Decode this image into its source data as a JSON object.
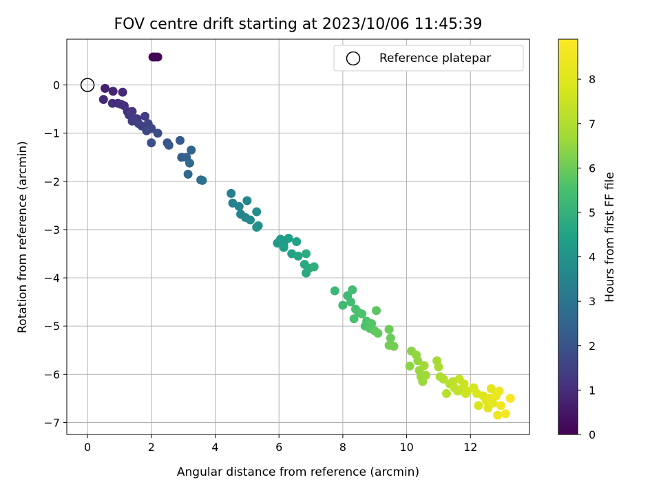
{
  "chart_data": {
    "type": "scatter",
    "title": "FOV centre drift starting at 2023/10/06 11:45:39",
    "xlabel": "Angular distance from reference (arcmin)",
    "ylabel": "Rotation from reference (arcmin)",
    "xlim": [
      -0.65,
      13.85
    ],
    "ylim": [
      -7.25,
      0.95
    ],
    "xticks": [
      "0",
      "2",
      "4",
      "6",
      "8",
      "10",
      "12"
    ],
    "yticks": [
      "0",
      "−1",
      "−2",
      "−3",
      "−4",
      "−5",
      "−6",
      "−7"
    ],
    "grid": true,
    "legend": {
      "position": "top-right",
      "entries": [
        "Reference platepar"
      ]
    },
    "reference_point": {
      "x": 0,
      "y": 0
    },
    "colorbar": {
      "label": "Hours from first FF file",
      "range": [
        0,
        8.9
      ],
      "ticks": [
        "0",
        "1",
        "2",
        "3",
        "4",
        "5",
        "6",
        "7",
        "8"
      ],
      "colormap": "viridis"
    },
    "points": [
      {
        "x": 2.05,
        "y": 0.58,
        "h": 0.0
      },
      {
        "x": 2.12,
        "y": 0.58,
        "h": 0.05
      },
      {
        "x": 2.2,
        "y": 0.58,
        "h": 0.1
      },
      {
        "x": 0.55,
        "y": -0.07,
        "h": 0.7
      },
      {
        "x": 0.8,
        "y": -0.13,
        "h": 0.8
      },
      {
        "x": 1.1,
        "y": -0.15,
        "h": 0.9
      },
      {
        "x": 0.5,
        "y": -0.3,
        "h": 0.9
      },
      {
        "x": 0.78,
        "y": -0.38,
        "h": 1.0
      },
      {
        "x": 0.95,
        "y": -0.38,
        "h": 1.0
      },
      {
        "x": 1.05,
        "y": -0.4,
        "h": 1.1
      },
      {
        "x": 1.15,
        "y": -0.43,
        "h": 1.1
      },
      {
        "x": 1.25,
        "y": -0.55,
        "h": 1.2
      },
      {
        "x": 1.4,
        "y": -0.55,
        "h": 1.2
      },
      {
        "x": 1.3,
        "y": -0.62,
        "h": 1.3
      },
      {
        "x": 1.55,
        "y": -0.7,
        "h": 1.3
      },
      {
        "x": 1.4,
        "y": -0.75,
        "h": 1.4
      },
      {
        "x": 1.8,
        "y": -0.65,
        "h": 1.4
      },
      {
        "x": 1.6,
        "y": -0.8,
        "h": 1.5
      },
      {
        "x": 1.7,
        "y": -0.85,
        "h": 1.5
      },
      {
        "x": 1.9,
        "y": -0.8,
        "h": 1.6
      },
      {
        "x": 2.0,
        "y": -0.9,
        "h": 1.6
      },
      {
        "x": 1.85,
        "y": -0.95,
        "h": 1.7
      },
      {
        "x": 2.2,
        "y": -1.0,
        "h": 1.8
      },
      {
        "x": 2.0,
        "y": -1.2,
        "h": 1.9
      },
      {
        "x": 2.5,
        "y": -1.2,
        "h": 2.0
      },
      {
        "x": 2.55,
        "y": -1.25,
        "h": 2.1
      },
      {
        "x": 2.9,
        "y": -1.15,
        "h": 2.2
      },
      {
        "x": 2.95,
        "y": -1.5,
        "h": 2.3
      },
      {
        "x": 3.1,
        "y": -1.5,
        "h": 2.4
      },
      {
        "x": 3.25,
        "y": -1.35,
        "h": 2.5
      },
      {
        "x": 3.2,
        "y": -1.62,
        "h": 2.6
      },
      {
        "x": 3.15,
        "y": -1.85,
        "h": 2.6
      },
      {
        "x": 3.55,
        "y": -1.97,
        "h": 2.8
      },
      {
        "x": 3.6,
        "y": -1.98,
        "h": 2.9
      },
      {
        "x": 4.5,
        "y": -2.25,
        "h": 3.3
      },
      {
        "x": 4.55,
        "y": -2.45,
        "h": 3.4
      },
      {
        "x": 4.75,
        "y": -2.52,
        "h": 3.5
      },
      {
        "x": 4.8,
        "y": -2.68,
        "h": 3.5
      },
      {
        "x": 4.95,
        "y": -2.75,
        "h": 3.6
      },
      {
        "x": 5.1,
        "y": -2.8,
        "h": 3.7
      },
      {
        "x": 5.0,
        "y": -2.4,
        "h": 3.6
      },
      {
        "x": 5.3,
        "y": -2.63,
        "h": 3.8
      },
      {
        "x": 5.3,
        "y": -2.95,
        "h": 3.9
      },
      {
        "x": 5.35,
        "y": -2.92,
        "h": 3.9
      },
      {
        "x": 5.95,
        "y": -3.28,
        "h": 4.2
      },
      {
        "x": 6.05,
        "y": -3.2,
        "h": 4.3
      },
      {
        "x": 6.15,
        "y": -3.3,
        "h": 4.3
      },
      {
        "x": 6.15,
        "y": -3.37,
        "h": 4.4
      },
      {
        "x": 6.3,
        "y": -3.18,
        "h": 4.4
      },
      {
        "x": 6.4,
        "y": -3.5,
        "h": 4.5
      },
      {
        "x": 6.55,
        "y": -3.25,
        "h": 4.5
      },
      {
        "x": 6.6,
        "y": -3.55,
        "h": 4.6
      },
      {
        "x": 6.8,
        "y": -3.72,
        "h": 4.7
      },
      {
        "x": 6.85,
        "y": -3.9,
        "h": 4.7
      },
      {
        "x": 6.85,
        "y": -3.5,
        "h": 4.8
      },
      {
        "x": 6.95,
        "y": -3.8,
        "h": 4.8
      },
      {
        "x": 7.1,
        "y": -3.77,
        "h": 4.9
      },
      {
        "x": 7.75,
        "y": -4.27,
        "h": 5.2
      },
      {
        "x": 8.0,
        "y": -4.57,
        "h": 5.3
      },
      {
        "x": 8.15,
        "y": -4.37,
        "h": 5.3
      },
      {
        "x": 8.3,
        "y": -4.25,
        "h": 5.4
      },
      {
        "x": 8.25,
        "y": -4.5,
        "h": 5.4
      },
      {
        "x": 8.4,
        "y": -4.65,
        "h": 5.5
      },
      {
        "x": 8.5,
        "y": -4.72,
        "h": 5.5
      },
      {
        "x": 8.35,
        "y": -4.85,
        "h": 5.5
      },
      {
        "x": 8.6,
        "y": -4.75,
        "h": 5.6
      },
      {
        "x": 8.75,
        "y": -4.9,
        "h": 5.6
      },
      {
        "x": 8.7,
        "y": -5.0,
        "h": 5.6
      },
      {
        "x": 8.9,
        "y": -4.95,
        "h": 5.7
      },
      {
        "x": 8.85,
        "y": -5.05,
        "h": 5.7
      },
      {
        "x": 9.0,
        "y": -5.1,
        "h": 5.8
      },
      {
        "x": 9.05,
        "y": -4.68,
        "h": 5.8
      },
      {
        "x": 9.1,
        "y": -5.15,
        "h": 5.9
      },
      {
        "x": 9.45,
        "y": -5.07,
        "h": 6.0
      },
      {
        "x": 9.5,
        "y": -5.25,
        "h": 6.0
      },
      {
        "x": 9.45,
        "y": -5.4,
        "h": 6.1
      },
      {
        "x": 9.6,
        "y": -5.42,
        "h": 6.1
      },
      {
        "x": 10.1,
        "y": -5.83,
        "h": 6.4
      },
      {
        "x": 10.15,
        "y": -5.52,
        "h": 6.4
      },
      {
        "x": 10.3,
        "y": -5.6,
        "h": 6.5
      },
      {
        "x": 10.35,
        "y": -5.72,
        "h": 6.5
      },
      {
        "x": 10.4,
        "y": -5.92,
        "h": 6.6
      },
      {
        "x": 10.45,
        "y": -6.05,
        "h": 6.6
      },
      {
        "x": 10.5,
        "y": -6.15,
        "h": 6.6
      },
      {
        "x": 10.55,
        "y": -5.82,
        "h": 6.7
      },
      {
        "x": 10.6,
        "y": -6.02,
        "h": 6.7
      },
      {
        "x": 10.95,
        "y": -5.72,
        "h": 6.8
      },
      {
        "x": 11.0,
        "y": -5.85,
        "h": 6.9
      },
      {
        "x": 11.05,
        "y": -6.05,
        "h": 6.9
      },
      {
        "x": 11.15,
        "y": -6.1,
        "h": 7.0
      },
      {
        "x": 11.25,
        "y": -6.4,
        "h": 7.1
      },
      {
        "x": 11.35,
        "y": -6.2,
        "h": 7.1
      },
      {
        "x": 11.45,
        "y": -6.15,
        "h": 7.2
      },
      {
        "x": 11.5,
        "y": -6.28,
        "h": 7.3
      },
      {
        "x": 11.6,
        "y": -6.35,
        "h": 7.3
      },
      {
        "x": 11.65,
        "y": -6.1,
        "h": 7.4
      },
      {
        "x": 11.75,
        "y": -6.3,
        "h": 7.4
      },
      {
        "x": 11.8,
        "y": -6.2,
        "h": 7.5
      },
      {
        "x": 11.85,
        "y": -6.4,
        "h": 7.5
      },
      {
        "x": 11.9,
        "y": -6.35,
        "h": 7.6
      },
      {
        "x": 12.1,
        "y": -6.28,
        "h": 7.7
      },
      {
        "x": 12.2,
        "y": -6.4,
        "h": 7.8
      },
      {
        "x": 12.25,
        "y": -6.65,
        "h": 7.8
      },
      {
        "x": 12.4,
        "y": -6.45,
        "h": 7.9
      },
      {
        "x": 12.5,
        "y": -6.55,
        "h": 8.0
      },
      {
        "x": 12.55,
        "y": -6.7,
        "h": 8.0
      },
      {
        "x": 12.6,
        "y": -6.5,
        "h": 8.1
      },
      {
        "x": 12.65,
        "y": -6.3,
        "h": 8.1
      },
      {
        "x": 12.7,
        "y": -6.6,
        "h": 8.2
      },
      {
        "x": 12.8,
        "y": -6.45,
        "h": 8.3
      },
      {
        "x": 12.85,
        "y": -6.85,
        "h": 8.4
      },
      {
        "x": 12.9,
        "y": -6.35,
        "h": 8.4
      },
      {
        "x": 12.95,
        "y": -6.65,
        "h": 8.5
      },
      {
        "x": 13.1,
        "y": -6.82,
        "h": 8.6
      },
      {
        "x": 13.25,
        "y": -6.5,
        "h": 8.8
      }
    ]
  }
}
